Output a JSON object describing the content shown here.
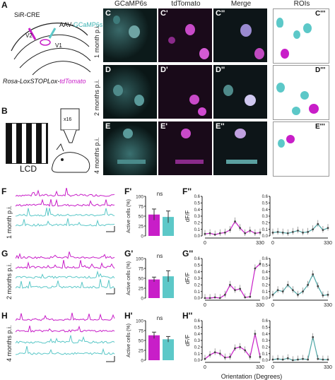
{
  "panels": {
    "A": {
      "label": "A",
      "sir_cre": "SiR-CRE",
      "aav": "AAV-",
      "aav_virus": "GCaMP6s",
      "v2": "V2",
      "v1": "V1",
      "mouse_prefix": "Rosa-LoxSTOPLox-",
      "mouse_suffix": "tdTomato"
    },
    "B": {
      "label": "B",
      "screen": "LCD",
      "objective": "x16"
    },
    "images": {
      "col_titles": [
        "GCaMP6s",
        "tdTomato",
        "Merge",
        "ROIs"
      ],
      "row_labels": [
        "1 month p.i.",
        "2 months p.i.",
        "4 months p.i."
      ],
      "labels": [
        [
          "C",
          "C'",
          "C''",
          "C'''"
        ],
        [
          "D",
          "D'",
          "D''",
          "D'''"
        ],
        [
          "E",
          "E'",
          "E''",
          "E'''"
        ]
      ]
    },
    "traces": {
      "labels": [
        "F",
        "G",
        "H"
      ],
      "row_labels": [
        "1 month p.i.",
        "2 months p.i.",
        "4 months p.i."
      ]
    },
    "bars": {
      "labels": [
        "F'",
        "G'",
        "H'"
      ],
      "ylabel": "Active cells (%)",
      "significance": "ns",
      "yticks": [
        "0",
        "25",
        "50",
        "75",
        "100"
      ]
    },
    "tuning": {
      "labels": [
        "F''",
        "G''",
        "H''"
      ],
      "ylabel": "dF/F",
      "xlabel": "Orientation (Degrees)",
      "xticks": [
        "0",
        "330"
      ],
      "yticks": [
        "0.0",
        "0.1",
        "0.2",
        "0.3",
        "0.4",
        "0.5",
        "0.6"
      ]
    }
  },
  "colors": {
    "magenta": "#c81ec8",
    "cyan": "#5cc8c8",
    "gcamp": "#4fa6a6"
  },
  "chart_data": [
    {
      "type": "bar",
      "panel": "F'",
      "categories": [
        "tdTomato",
        "GCaMP6s"
      ],
      "values": [
        54,
        48
      ],
      "errors": [
        14,
        15
      ],
      "ylim": [
        0,
        100
      ],
      "ylabel": "Active cells (%)",
      "annotation": "ns"
    },
    {
      "type": "bar",
      "panel": "G'",
      "categories": [
        "tdTomato",
        "GCaMP6s"
      ],
      "values": [
        47,
        55
      ],
      "errors": [
        6,
        14
      ],
      "ylim": [
        0,
        100
      ],
      "ylabel": "Active cells (%)",
      "annotation": "ns"
    },
    {
      "type": "bar",
      "panel": "H'",
      "categories": [
        "tdTomato",
        "GCaMP6s"
      ],
      "values": [
        63,
        53
      ],
      "errors": [
        8,
        7
      ],
      "ylim": [
        0,
        100
      ],
      "ylabel": "Active cells (%)",
      "annotation": "ns"
    },
    {
      "type": "line",
      "panel": "F'' left",
      "x": [
        0,
        30,
        60,
        90,
        120,
        150,
        180,
        210,
        240,
        270,
        300,
        330
      ],
      "series": [
        {
          "values": [
            0.03,
            0.04,
            0.02,
            0.04,
            0.05,
            0.09,
            0.22,
            0.12,
            0.04,
            0.08,
            0.04,
            0.05
          ]
        }
      ],
      "ylim": [
        0,
        0.6
      ]
    },
    {
      "type": "line",
      "panel": "F'' right",
      "x": [
        0,
        30,
        60,
        90,
        120,
        150,
        180,
        210,
        240,
        270,
        300,
        330
      ],
      "series": [
        {
          "values": [
            0.05,
            0.06,
            0.05,
            0.04,
            0.06,
            0.08,
            0.05,
            0.06,
            0.1,
            0.18,
            0.09,
            0.12
          ]
        }
      ],
      "ylim": [
        0,
        0.6
      ]
    },
    {
      "type": "line",
      "panel": "G'' left",
      "x": [
        0,
        30,
        60,
        90,
        120,
        150,
        180,
        210,
        240,
        270,
        300,
        330
      ],
      "series": [
        {
          "values": [
            0.0,
            0.0,
            0.01,
            0.0,
            0.05,
            0.2,
            0.12,
            0.14,
            0.01,
            0.02,
            0.45,
            0.52
          ]
        }
      ],
      "ylim": [
        0,
        0.6
      ]
    },
    {
      "type": "line",
      "panel": "G'' right",
      "x": [
        0,
        30,
        60,
        90,
        120,
        150,
        180,
        210,
        240,
        270,
        300,
        330
      ],
      "series": [
        {
          "values": [
            0.05,
            0.12,
            0.1,
            0.2,
            0.12,
            0.05,
            0.1,
            0.2,
            0.36,
            0.18,
            0.04,
            0.05
          ]
        }
      ],
      "ylim": [
        0,
        0.6
      ]
    },
    {
      "type": "line",
      "panel": "H'' left",
      "x": [
        0,
        30,
        60,
        90,
        120,
        150,
        180,
        210,
        240,
        270,
        300,
        330
      ],
      "series": [
        {
          "values": [
            0.02,
            0.08,
            0.12,
            0.1,
            0.04,
            0.05,
            0.18,
            0.2,
            0.15,
            0.05,
            0.4,
            0.05
          ]
        }
      ],
      "ylim": [
        0,
        0.6
      ]
    },
    {
      "type": "line",
      "panel": "H'' right",
      "x": [
        0,
        30,
        60,
        90,
        120,
        150,
        180,
        210,
        240,
        270,
        300,
        330
      ],
      "series": [
        {
          "values": [
            0.01,
            0.02,
            0.01,
            0.03,
            0.0,
            0.01,
            0.02,
            0.01,
            0.35,
            0.02,
            0.01,
            0.01
          ]
        }
      ],
      "ylim": [
        0,
        0.6
      ]
    }
  ]
}
